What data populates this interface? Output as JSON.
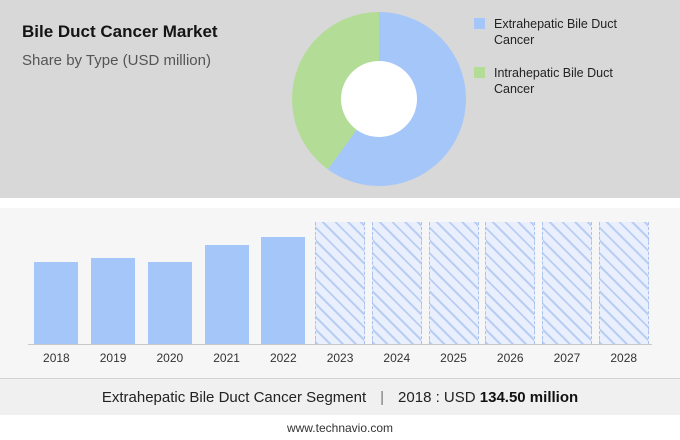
{
  "header": {
    "title": "Bile Duct Cancer Market",
    "subtitle": "Share by Type (USD million)"
  },
  "colors": {
    "blue": "#a5c6f9",
    "green": "#b3dc96",
    "hero_background": "#d8d8d8",
    "panel_background": "#f6f6f6"
  },
  "chart_data": [
    {
      "type": "pie",
      "subtype": "donut",
      "title": "Share by Type (USD million)",
      "segments": [
        {
          "label": "Extrahepatic Bile Duct Cancer",
          "value": 60,
          "color": "#a5c6f9"
        },
        {
          "label": "Intrahepatic Bile Duct Cancer",
          "value": 40,
          "color": "#b3dc96"
        }
      ],
      "legend_position": "right",
      "hole": true
    },
    {
      "type": "bar",
      "categories": [
        "2018",
        "2019",
        "2020",
        "2021",
        "2022",
        "2023",
        "2024",
        "2025",
        "2026",
        "2027",
        "2028"
      ],
      "series": [
        {
          "name": "Extrahepatic Bile Duct Cancer (USD million)",
          "values": [
            134.5,
            141,
            134,
            163,
            175,
            null,
            null,
            null,
            null,
            null,
            null
          ]
        }
      ],
      "forecast_categories": [
        "2023",
        "2024",
        "2025",
        "2026",
        "2027",
        "2028"
      ],
      "ylim": [
        0,
        200
      ],
      "bar_color": "#a5c6f9",
      "grid": false
    }
  ],
  "caption": {
    "segment": "Extrahepatic Bile Duct Cancer Segment",
    "separator": "|",
    "value_prefix": "2018 : USD",
    "value_bold": "134.50 million"
  },
  "footer": {
    "url": "www.technavio.com"
  }
}
